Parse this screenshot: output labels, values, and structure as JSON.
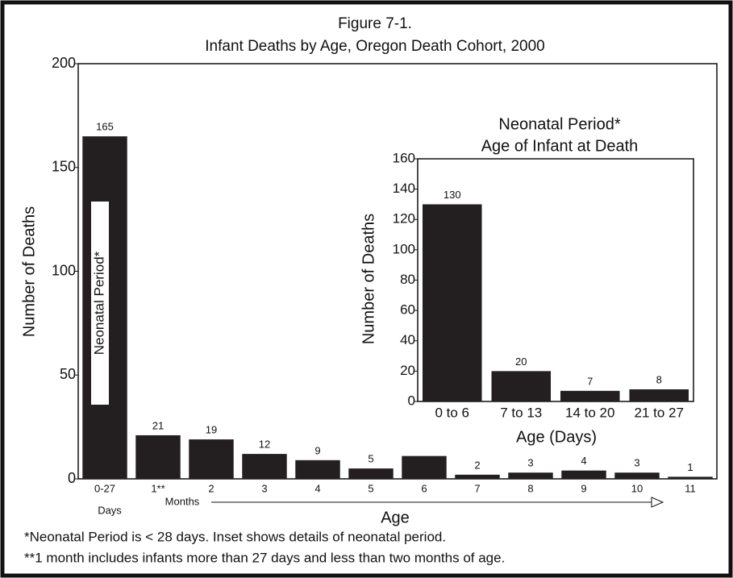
{
  "chart_data": [
    {
      "type": "bar",
      "title": "Figure 7-1.",
      "subtitle": "Infant Deaths by Age, Oregon Death Cohort, 2000",
      "categories": [
        "0-27",
        "1**",
        "2",
        "3",
        "4",
        "5",
        "6",
        "7",
        "8",
        "9",
        "10",
        "11"
      ],
      "values": [
        165,
        21,
        19,
        12,
        9,
        5,
        11,
        2,
        3,
        4,
        3,
        1
      ],
      "color": "#231f20",
      "ylim": [
        0,
        200
      ],
      "yticks": [
        0,
        50,
        100,
        150,
        200
      ],
      "ylabel": "Number of Deaths",
      "xlabel": "Age",
      "annotations": [
        "Neonatal Period*",
        "Days",
        "Months"
      ],
      "notes": [
        "*Neonatal Period is < 28 days.  Inset shows details of neonatal period.",
        "**1 month includes infants more than 27 days and less than two months of age."
      ]
    },
    {
      "type": "bar",
      "title": "Neonatal Period*",
      "subtitle": "Age of Infant at Death",
      "categories": [
        "0 to 6",
        "7 to 13",
        "14 to 20",
        "21 to 27"
      ],
      "values": [
        130,
        20,
        7,
        8
      ],
      "color": "#231f20",
      "ylim": [
        0,
        160
      ],
      "yticks": [
        0,
        20,
        40,
        60,
        80,
        100,
        120,
        140,
        160
      ],
      "ylabel": "Number of Deaths",
      "xlabel": "Age (Days)"
    }
  ]
}
